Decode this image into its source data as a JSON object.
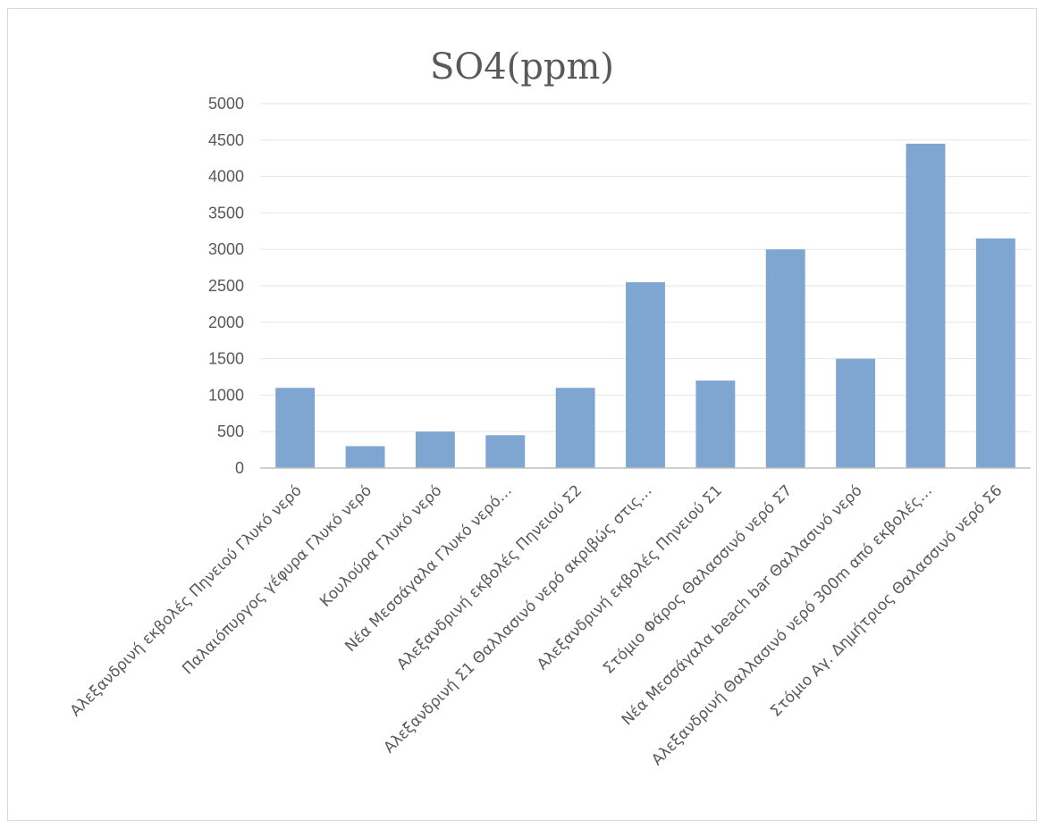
{
  "chart_data": {
    "type": "bar",
    "title": "SO4(ppm)",
    "xlabel": "",
    "ylabel": "",
    "ylim": [
      0,
      5000
    ],
    "y_ticks": [
      0,
      500,
      1000,
      1500,
      2000,
      2500,
      3000,
      3500,
      4000,
      4500,
      5000
    ],
    "grid": true,
    "legend": "none",
    "categories": [
      "Αλεξανδρινή εκβολές Πηνειού Γλυκό νερό",
      "Παλαιόπυργος γέφυρα Γλυκό νερό",
      "Κουλούρα Γλυκό νερό",
      "Νέα Μεσσάγαλα Γλυκό νερό…",
      "Αλεξανδρινή εκβολές Πηνειού Σ2",
      "Αλεξανδρινή Σ1 Θαλλασινό νερό ακριβώς στις…",
      "Αλεξανδρινή εκβολές Πηνειού Σ1",
      "Στόμιο Φάρος Θαλασσινό νερό Σ7",
      "Νέα Μεσσάγαλα beach bar Θαλλασινό νερό",
      "Αλεξανδρινή Θαλλασινό νερό 300m από εκβολές…",
      "Στόμιο Αγ. Δημήτριος Θαλασσινό νερό Σ6"
    ],
    "values": [
      1100,
      300,
      500,
      450,
      1100,
      2550,
      1200,
      3000,
      1500,
      4450,
      3150
    ],
    "colors": {
      "bar": "#7fa6d1",
      "grid": "#e6e6e6",
      "axis": "#bfbfbf",
      "text": "#595959"
    }
  }
}
